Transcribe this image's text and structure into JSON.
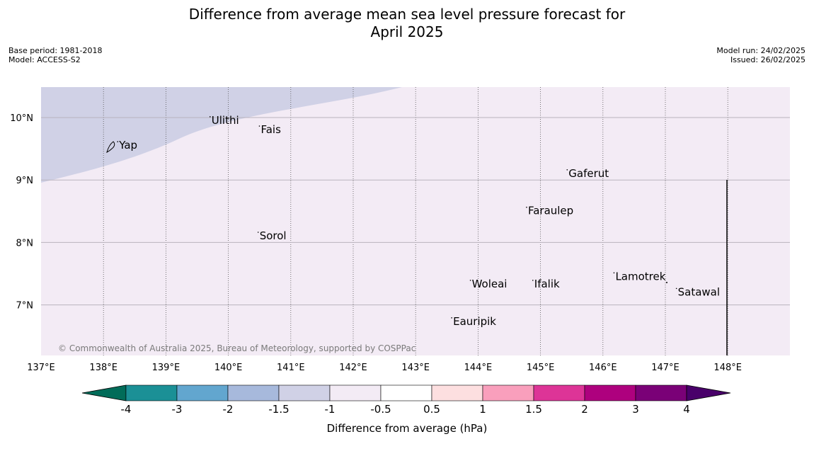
{
  "header": {
    "title_line1": "Difference from average mean sea level pressure forecast for",
    "title_line2": "April 2025",
    "base_period": "Base period: 1981-2018",
    "model": "Model: ACCESS-S2",
    "model_run": "Model run: 24/02/2025",
    "issued": "Issued: 26/02/2025"
  },
  "map": {
    "lon_range": [
      137,
      149
    ],
    "lat_range": [
      6.2,
      10.5
    ],
    "lon_ticks": [
      "137°E",
      "138°E",
      "139°E",
      "140°E",
      "141°E",
      "142°E",
      "143°E",
      "144°E",
      "145°E",
      "146°E",
      "147°E",
      "148°E"
    ],
    "lat_ticks": [
      "10°N",
      "9°N",
      "8°N",
      "7°N"
    ],
    "places": [
      {
        "name": "Yap",
        "lon": 138.25,
        "lat": 9.5
      },
      {
        "name": "Ulithi",
        "lon": 139.73,
        "lat": 9.9
      },
      {
        "name": "Fais",
        "lon": 140.52,
        "lat": 9.75
      },
      {
        "name": "Gaferut",
        "lon": 145.45,
        "lat": 9.05
      },
      {
        "name": "Faraulep",
        "lon": 144.8,
        "lat": 8.45
      },
      {
        "name": "Sorol",
        "lon": 140.5,
        "lat": 8.05
      },
      {
        "name": "Lamotrek",
        "lon": 146.2,
        "lat": 7.4
      },
      {
        "name": "Woleai",
        "lon": 143.9,
        "lat": 7.28
      },
      {
        "name": "Ifalik",
        "lon": 144.9,
        "lat": 7.28
      },
      {
        "name": "Satawal",
        "lon": 147.2,
        "lat": 7.15
      },
      {
        "name": "Eauripik",
        "lon": 143.6,
        "lat": 6.68
      }
    ],
    "region_colors": {
      "minus_1_5_to_minus_1": "#d0d1e6",
      "minus_1_to_minus_0_5": "#f3ebf5"
    },
    "copyright": "© Commonwealth of Australia 2025, Bureau of Meteorology, supported by COSPPac"
  },
  "colorbar": {
    "label": "Difference from average (hPa)",
    "ticks": [
      "-4",
      "-3",
      "-2",
      "-1.5",
      "-1",
      "-0.5",
      "0.5",
      "1",
      "1.5",
      "2",
      "3",
      "4"
    ],
    "colors": [
      "#1b9096",
      "#62a6cf",
      "#a7b9dc",
      "#d0d1e6",
      "#f3ebf5",
      "#ffffff",
      "#fddfe0",
      "#f99fbc",
      "#dd3497",
      "#ae017e",
      "#7a0177"
    ],
    "under_color": "#016c59",
    "over_color": "#49006a"
  }
}
